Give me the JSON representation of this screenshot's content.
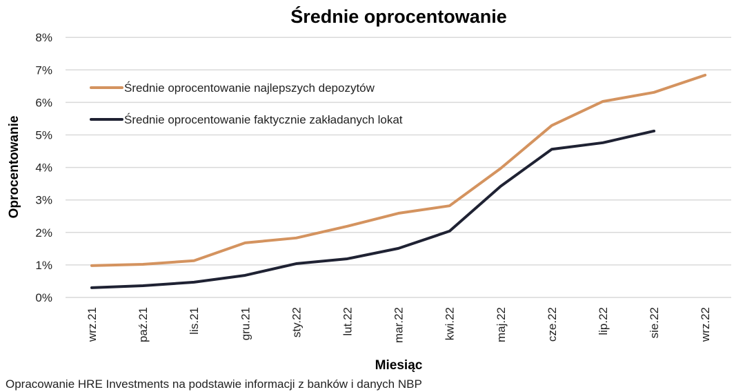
{
  "chart_data": {
    "type": "line",
    "title": "Średnie oprocentowanie",
    "xlabel": "Miesiąc",
    "ylabel": "Oprocentowanie",
    "categories": [
      "wrz.21",
      "paź.21",
      "lis.21",
      "gru.21",
      "sty.22",
      "lut.22",
      "mar.22",
      "kwi.22",
      "maj.22",
      "cze.22",
      "lip.22",
      "sie.22",
      "wrz.22"
    ],
    "y_ticks": [
      "0%",
      "1%",
      "2%",
      "3%",
      "4%",
      "5%",
      "6%",
      "7%",
      "8%"
    ],
    "ylim": [
      0,
      8
    ],
    "grid": true,
    "legend_position": "top-left",
    "series": [
      {
        "name": "Średnie oprocentowanie najlepszych depozytów",
        "color": "#d4935f",
        "values": [
          0.98,
          1.02,
          1.13,
          1.68,
          1.83,
          2.19,
          2.59,
          2.82,
          3.97,
          5.29,
          6.03,
          6.31,
          6.84
        ]
      },
      {
        "name": "Średnie oprocentowanie faktycznie zakładanych lokat",
        "color": "#1f2233",
        "values": [
          0.3,
          0.36,
          0.47,
          0.68,
          1.04,
          1.19,
          1.51,
          2.04,
          3.42,
          4.56,
          4.76,
          5.12,
          null
        ]
      }
    ]
  },
  "source_note": "Opracowanie HRE Investments na podstawie informacji z banków i danych NBP"
}
